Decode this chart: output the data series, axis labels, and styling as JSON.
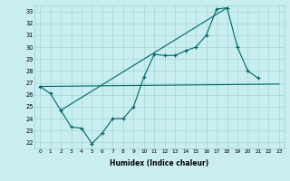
{
  "xlabel": "Humidex (Indice chaleur)",
  "bg_color": "#c8eef0",
  "line_color": "#006666",
  "grid_color": "#9ecfcf",
  "xlim": [
    -0.5,
    23.5
  ],
  "ylim": [
    21.5,
    33.5
  ],
  "xticks": [
    0,
    1,
    2,
    3,
    4,
    5,
    6,
    7,
    8,
    9,
    10,
    11,
    12,
    13,
    14,
    15,
    16,
    17,
    18,
    19,
    20,
    21,
    22,
    23
  ],
  "yticks": [
    22,
    23,
    24,
    25,
    26,
    27,
    28,
    29,
    30,
    31,
    32,
    33
  ],
  "main_x": [
    0,
    1,
    2,
    3,
    4,
    5,
    6,
    7,
    8,
    9,
    10,
    11,
    12,
    13,
    14,
    15,
    16,
    17,
    18,
    19,
    20,
    21
  ],
  "main_y": [
    26.7,
    26.1,
    24.7,
    23.3,
    23.2,
    21.9,
    22.8,
    24.0,
    24.0,
    25.0,
    27.5,
    29.4,
    29.3,
    29.3,
    29.7,
    30.0,
    31.0,
    33.2,
    33.3,
    30.0,
    28.0,
    27.4
  ],
  "line1_x": [
    0,
    23
  ],
  "line1_y": [
    26.7,
    26.9
  ],
  "line2_x": [
    2,
    18
  ],
  "line2_y": [
    24.7,
    33.3
  ]
}
